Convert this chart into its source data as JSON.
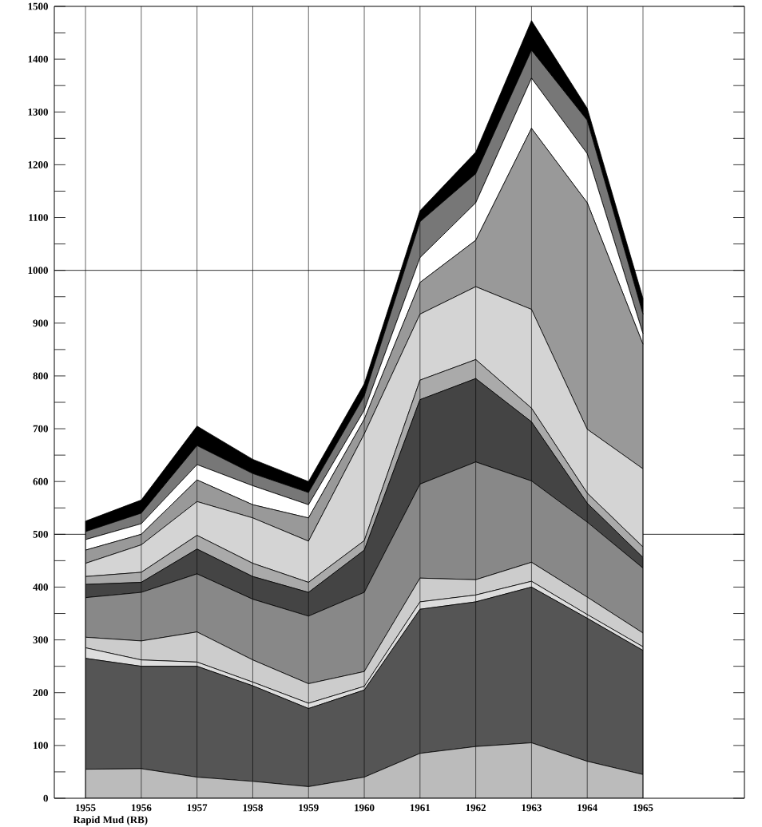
{
  "chart_data": {
    "type": "area",
    "stacked": true,
    "x": [
      1955,
      1956,
      1957,
      1958,
      1959,
      1960,
      1961,
      1962,
      1963,
      1964,
      1965
    ],
    "series": [
      {
        "color": "#bbbbbb",
        "values": [
          55,
          56,
          40,
          32,
          22,
          40,
          85,
          98,
          105,
          70,
          45
        ]
      },
      {
        "color": "#555555",
        "values": [
          210,
          194,
          210,
          181,
          148,
          165,
          273,
          274,
          295,
          271,
          235
        ]
      },
      {
        "color": "#dddddd",
        "values": [
          20,
          12,
          8,
          7,
          10,
          7,
          14,
          13,
          11,
          7,
          7
        ]
      },
      {
        "color": "#cccccc",
        "values": [
          20,
          36,
          57,
          42,
          37,
          28,
          45,
          29,
          36,
          33,
          26
        ]
      },
      {
        "color": "#888888",
        "values": [
          75,
          92,
          110,
          115,
          128,
          150,
          178,
          223,
          154,
          142,
          123
        ]
      },
      {
        "color": "#444444",
        "values": [
          25,
          19,
          47,
          43,
          45,
          80,
          160,
          158,
          112,
          36,
          20
        ]
      },
      {
        "color": "#aaaaaa",
        "values": [
          15,
          19,
          26,
          25,
          19,
          18,
          37,
          36,
          26,
          19,
          20
        ]
      },
      {
        "color": "#d4d4d4",
        "values": [
          25,
          52,
          64,
          86,
          78,
          202,
          125,
          138,
          187,
          121,
          148
        ]
      },
      {
        "color": "#999999",
        "values": [
          25,
          20,
          41,
          25,
          44,
          28,
          60,
          88,
          343,
          429,
          236
        ]
      },
      {
        "color": "#ffffff",
        "values": [
          20,
          20,
          29,
          36,
          25,
          17,
          47,
          71,
          95,
          93,
          20
        ]
      },
      {
        "color": "#777777",
        "values": [
          15,
          20,
          36,
          23,
          23,
          27,
          68,
          55,
          53,
          63,
          37
        ]
      },
      {
        "color": "#000000",
        "values": [
          20,
          25,
          37,
          27,
          21,
          23,
          21,
          41,
          56,
          23,
          30
        ]
      }
    ],
    "xlim": [
      1954.44,
      1966.82
    ],
    "ylim": [
      0,
      1500
    ],
    "xticks": [
      1955,
      1956,
      1957,
      1958,
      1959,
      1960,
      1961,
      1962,
      1963,
      1964,
      1965
    ],
    "yticks": [
      0,
      100,
      200,
      300,
      400,
      500,
      600,
      700,
      800,
      900,
      1000,
      1100,
      1200,
      1300,
      1400,
      1500
    ],
    "grid": "x",
    "ref_lines": [
      {
        "axis": "y",
        "value": 500
      },
      {
        "axis": "y",
        "value": 1000
      }
    ],
    "annotations": [
      "Rapid Mud (RB)"
    ]
  }
}
